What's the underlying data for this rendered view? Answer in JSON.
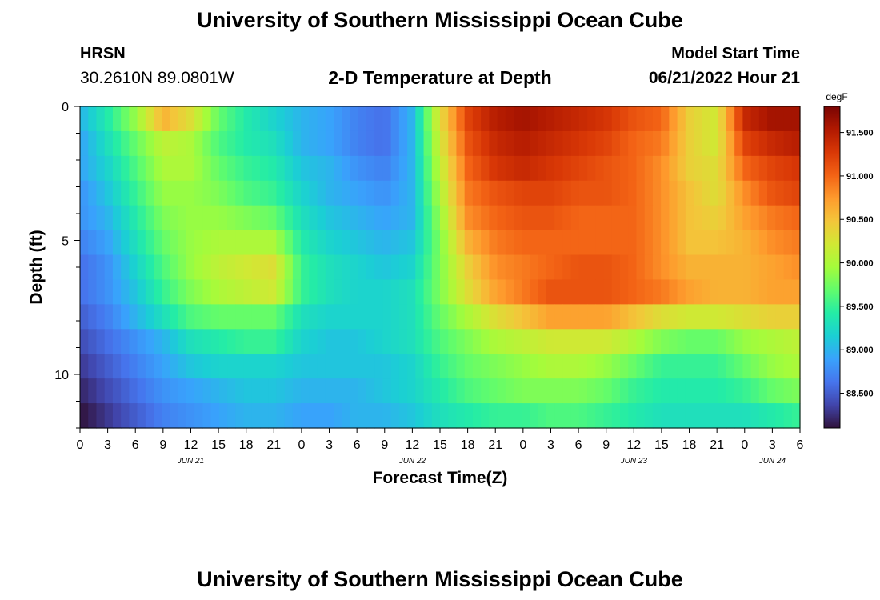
{
  "header": {
    "title": "University of Southern Mississippi Ocean Cube",
    "station": "HRSN",
    "coords": "30.2610N  89.0801W",
    "chart_title": "2-D Temperature at Depth",
    "start_label": "Model Start Time",
    "start_value": "06/21/2022 Hour 21"
  },
  "footer": {
    "title": "University of Southern Mississippi Ocean Cube"
  },
  "chart_data": {
    "type": "heatmap",
    "title": "2-D Temperature at Depth",
    "xlabel": "Forecast Time(Z)",
    "ylabel": "Depth (ft)",
    "x_tick_labels": [
      "0",
      "3",
      "6",
      "9",
      "12",
      "15",
      "18",
      "21",
      "0",
      "3",
      "6",
      "9",
      "12",
      "15",
      "18",
      "21",
      "0",
      "3",
      "6",
      "9",
      "12",
      "15",
      "18",
      "21",
      "0",
      "3",
      "6"
    ],
    "date_labels": [
      {
        "label": "JUN 21",
        "tick_index": 4
      },
      {
        "label": "JUN 22",
        "tick_index": 12
      },
      {
        "label": "JUN 23",
        "tick_index": 20
      },
      {
        "label": "JUN 24",
        "tick_index": 25
      }
    ],
    "y_tick_labels": [
      "0",
      "5",
      "10"
    ],
    "ylim": [
      0,
      12
    ],
    "colorbar": {
      "unit": "degF",
      "ticks": [
        "91.500",
        "91.000",
        "90.500",
        "90.000",
        "89.500",
        "89.000",
        "88.500"
      ],
      "range": [
        88.1,
        91.8
      ],
      "colors": [
        "#30123b",
        "#4145ab",
        "#4675ed",
        "#39a2fc",
        "#1bcfd4",
        "#24eca6",
        "#61fc6c",
        "#a4fc3b",
        "#d1e834",
        "#f3c63a",
        "#fe9b2d",
        "#f36315",
        "#d93806",
        "#b11901",
        "#7a0403"
      ]
    },
    "depth_levels_ft": [
      0,
      1,
      2,
      3,
      4,
      5,
      6,
      7,
      8,
      9,
      10,
      11,
      12
    ],
    "time_hours": [
      0,
      3,
      6,
      9,
      12,
      15,
      18,
      21,
      24,
      27,
      30,
      33,
      36,
      39,
      42,
      45,
      48,
      51,
      54,
      57,
      60,
      63,
      66,
      69,
      72,
      75,
      78
    ],
    "values_degF": [
      [
        89.0,
        89.4,
        89.9,
        90.6,
        90.3,
        89.7,
        89.4,
        89.2,
        89.0,
        88.9,
        88.7,
        88.6,
        89.0,
        90.3,
        91.2,
        91.5,
        91.6,
        91.5,
        91.4,
        91.3,
        91.1,
        91.0,
        90.4,
        90.2,
        91.4,
        91.6,
        91.6
      ],
      [
        88.9,
        89.3,
        89.7,
        90.1,
        90.0,
        89.6,
        89.4,
        89.3,
        89.0,
        88.9,
        88.7,
        88.6,
        89.0,
        90.2,
        91.1,
        91.4,
        91.5,
        91.4,
        91.3,
        91.2,
        91.0,
        90.9,
        90.4,
        90.2,
        91.2,
        91.4,
        91.5
      ],
      [
        88.9,
        89.2,
        89.6,
        90.0,
        90.0,
        89.7,
        89.5,
        89.4,
        89.1,
        89.0,
        88.8,
        88.7,
        89.0,
        90.1,
        91.0,
        91.3,
        91.4,
        91.3,
        91.2,
        91.1,
        91.0,
        90.8,
        90.4,
        90.3,
        91.0,
        91.2,
        91.3
      ],
      [
        88.8,
        89.1,
        89.5,
        89.9,
        89.9,
        89.8,
        89.6,
        89.5,
        89.2,
        89.0,
        88.9,
        88.8,
        89.0,
        90.0,
        90.9,
        91.1,
        91.2,
        91.2,
        91.1,
        91.1,
        91.0,
        90.8,
        90.5,
        90.3,
        90.8,
        91.1,
        91.2
      ],
      [
        88.8,
        89.0,
        89.4,
        89.8,
        89.9,
        89.9,
        89.8,
        89.7,
        89.3,
        89.1,
        89.0,
        88.9,
        89.0,
        89.9,
        90.8,
        91.0,
        91.1,
        91.1,
        91.0,
        91.0,
        91.0,
        90.8,
        90.5,
        90.4,
        90.7,
        90.9,
        91.0
      ],
      [
        88.7,
        88.9,
        89.3,
        89.7,
        89.9,
        90.0,
        90.0,
        90.0,
        89.4,
        89.2,
        89.1,
        89.0,
        89.1,
        89.8,
        90.6,
        90.9,
        91.0,
        91.0,
        91.0,
        91.0,
        91.0,
        90.8,
        90.5,
        90.5,
        90.6,
        90.8,
        90.9
      ],
      [
        88.6,
        88.8,
        89.2,
        89.6,
        89.9,
        90.1,
        90.2,
        90.3,
        89.5,
        89.3,
        89.2,
        89.1,
        89.2,
        89.8,
        90.4,
        90.8,
        90.9,
        91.0,
        91.1,
        91.1,
        91.0,
        90.8,
        90.6,
        90.6,
        90.6,
        90.7,
        90.8
      ],
      [
        88.6,
        88.8,
        89.1,
        89.5,
        89.8,
        90.0,
        90.1,
        90.2,
        89.5,
        89.3,
        89.2,
        89.2,
        89.3,
        89.8,
        90.3,
        90.7,
        90.9,
        91.1,
        91.1,
        91.1,
        91.0,
        90.9,
        90.7,
        90.6,
        90.6,
        90.7,
        90.7
      ],
      [
        88.5,
        88.7,
        89.0,
        89.3,
        89.6,
        89.7,
        89.7,
        89.7,
        89.3,
        89.2,
        89.2,
        89.2,
        89.3,
        89.7,
        90.0,
        90.3,
        90.5,
        90.7,
        90.7,
        90.7,
        90.5,
        90.3,
        90.2,
        90.2,
        90.3,
        90.4,
        90.4
      ],
      [
        88.4,
        88.6,
        88.8,
        89.0,
        89.3,
        89.4,
        89.5,
        89.5,
        89.2,
        89.1,
        89.1,
        89.2,
        89.3,
        89.6,
        89.8,
        90.0,
        90.1,
        90.2,
        90.2,
        90.2,
        90.0,
        89.8,
        89.7,
        89.7,
        89.9,
        90.0,
        90.1
      ],
      [
        88.3,
        88.5,
        88.7,
        88.9,
        89.1,
        89.2,
        89.2,
        89.2,
        89.1,
        89.1,
        89.1,
        89.1,
        89.2,
        89.5,
        89.7,
        89.8,
        89.9,
        90.0,
        90.0,
        89.9,
        89.7,
        89.5,
        89.5,
        89.5,
        89.7,
        89.9,
        90.0
      ],
      [
        88.2,
        88.4,
        88.6,
        88.8,
        88.9,
        89.0,
        89.1,
        89.1,
        89.0,
        89.0,
        89.0,
        89.1,
        89.2,
        89.4,
        89.6,
        89.7,
        89.8,
        89.8,
        89.8,
        89.7,
        89.5,
        89.4,
        89.4,
        89.4,
        89.5,
        89.7,
        89.8
      ],
      [
        88.1,
        88.3,
        88.5,
        88.7,
        88.8,
        88.9,
        89.0,
        89.0,
        88.9,
        88.9,
        89.0,
        89.0,
        89.1,
        89.3,
        89.4,
        89.5,
        89.5,
        89.6,
        89.6,
        89.5,
        89.4,
        89.3,
        89.3,
        89.3,
        89.3,
        89.4,
        89.5
      ]
    ]
  }
}
